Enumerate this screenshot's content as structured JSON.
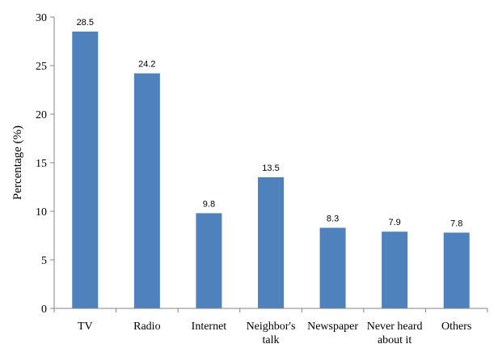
{
  "chart_data": {
    "type": "bar",
    "categories": [
      "TV",
      "Radio",
      "Internet",
      "Neighbor's talk",
      "Newspaper",
      "Never heard about it",
      "Others"
    ],
    "category_lines": [
      [
        "TV"
      ],
      [
        "Radio"
      ],
      [
        "Internet"
      ],
      [
        "Neighbor's",
        "talk"
      ],
      [
        "Newspaper"
      ],
      [
        "Never heard",
        "about it"
      ],
      [
        "Others"
      ]
    ],
    "values": [
      28.5,
      24.2,
      9.8,
      13.5,
      8.3,
      7.9,
      7.8
    ],
    "value_labels": [
      "28.5",
      "24.2",
      "9.8",
      "13.5",
      "8.3",
      "7.9",
      "7.8"
    ],
    "title": "",
    "xlabel": "",
    "ylabel": "Percentage (%)",
    "ylim": [
      0,
      30
    ],
    "yticks": [
      0,
      5,
      10,
      15,
      20,
      25,
      30
    ],
    "bar_color": "#4f81bd",
    "axis_color": "#868686",
    "grid": false,
    "legend": "none"
  }
}
